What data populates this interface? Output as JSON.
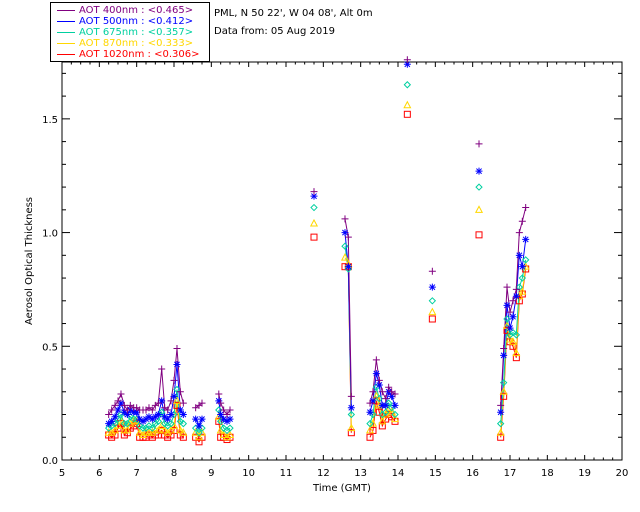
{
  "header": {
    "station": "PML, N 50 22', W 04 08', Alt 0m",
    "date": "Data from: 05 Aug 2019"
  },
  "legend": [
    {
      "label": "AOT  400nm : <0.465>",
      "color": "#800080"
    },
    {
      "label": "AOT  500nm : <0.412>",
      "color": "#0000ff"
    },
    {
      "label": "AOT  675nm : <0.357>",
      "color": "#00d0a0"
    },
    {
      "label": "AOT  870nm : <0.333>",
      "color": "#ffd700"
    },
    {
      "label": "AOT 1020nm : <0.306>",
      "color": "#ff0000"
    }
  ],
  "chart_data": {
    "type": "line",
    "xlabel": "Time (GMT)",
    "ylabel": "Aerosol Optical Thickness",
    "xlim": [
      5,
      20
    ],
    "ylim": [
      0,
      1.75
    ],
    "xticks": [
      "5",
      "6",
      "7",
      "8",
      "9",
      "10",
      "11",
      "12",
      "13",
      "14",
      "15",
      "16",
      "17",
      "18",
      "19",
      "20"
    ],
    "yticks": [
      "0.0",
      "0.5",
      "1.0",
      "1.5"
    ],
    "segments": [
      {
        "x": [
          6.25,
          6.33,
          6.42,
          6.5,
          6.58,
          6.67,
          6.75,
          6.83,
          6.92,
          7.0,
          7.08,
          7.17,
          7.25,
          7.33,
          7.42,
          7.5,
          7.58,
          7.67,
          7.75,
          7.83,
          7.92,
          8.0,
          8.08,
          8.17,
          8.25
        ],
        "series": [
          [
            0.2,
            0.22,
            0.24,
            0.26,
            0.29,
            0.24,
            0.22,
            0.24,
            0.23,
            0.23,
            0.22,
            0.22,
            0.22,
            0.23,
            0.22,
            0.24,
            0.25,
            0.4,
            0.23,
            0.22,
            0.26,
            0.35,
            0.49,
            0.3,
            0.25
          ],
          [
            0.16,
            0.17,
            0.19,
            0.22,
            0.25,
            0.21,
            0.2,
            0.22,
            0.21,
            0.21,
            0.18,
            0.17,
            0.18,
            0.19,
            0.18,
            0.19,
            0.2,
            0.26,
            0.19,
            0.18,
            0.2,
            0.28,
            0.42,
            0.22,
            0.2
          ],
          [
            0.14,
            0.15,
            0.16,
            0.18,
            0.2,
            0.16,
            0.16,
            0.19,
            0.18,
            0.18,
            0.15,
            0.14,
            0.14,
            0.15,
            0.14,
            0.16,
            0.17,
            0.21,
            0.16,
            0.15,
            0.16,
            0.2,
            0.31,
            0.17,
            0.16
          ],
          [
            0.12,
            0.12,
            0.13,
            0.15,
            0.17,
            0.13,
            0.13,
            0.16,
            0.17,
            0.17,
            0.12,
            0.11,
            0.12,
            0.12,
            0.12,
            0.13,
            0.13,
            0.15,
            0.13,
            0.12,
            0.13,
            0.15,
            0.26,
            0.13,
            0.12
          ],
          [
            0.11,
            0.1,
            0.11,
            0.14,
            0.16,
            0.11,
            0.12,
            0.14,
            0.15,
            0.16,
            0.1,
            0.1,
            0.1,
            0.11,
            0.1,
            0.11,
            0.11,
            0.13,
            0.11,
            0.1,
            0.11,
            0.13,
            0.24,
            0.11,
            0.1
          ]
        ]
      },
      {
        "x": [
          8.58,
          8.67,
          8.75
        ],
        "series": [
          [
            0.23,
            0.24,
            0.25
          ],
          [
            0.18,
            0.15,
            0.18
          ],
          [
            0.14,
            0.12,
            0.14
          ],
          [
            0.12,
            0.1,
            0.12
          ],
          [
            0.1,
            0.08,
            0.1
          ]
        ]
      },
      {
        "x": [
          9.2,
          9.25,
          9.33,
          9.42,
          9.5
        ],
        "series": [
          [
            0.29,
            0.25,
            0.22,
            0.2,
            0.22
          ],
          [
            0.26,
            0.2,
            0.18,
            0.17,
            0.18
          ],
          [
            0.22,
            0.17,
            0.14,
            0.13,
            0.14
          ],
          [
            0.19,
            0.13,
            0.11,
            0.1,
            0.11
          ],
          [
            0.17,
            0.1,
            0.1,
            0.09,
            0.1
          ]
        ]
      },
      {
        "x": [
          11.75
        ],
        "series": [
          [
            1.18
          ],
          [
            1.16
          ],
          [
            1.11
          ],
          [
            1.04
          ],
          [
            0.98
          ]
        ]
      },
      {
        "x": [
          12.58,
          12.67,
          12.75
        ],
        "series": [
          [
            1.06,
            0.98,
            0.28
          ],
          [
            1.0,
            0.85,
            0.23
          ],
          [
            0.94,
            0.84,
            0.2
          ],
          [
            0.89,
            0.86,
            0.14
          ],
          [
            0.85,
            0.85,
            0.12
          ]
        ]
      },
      {
        "x": [
          13.25,
          13.33,
          13.42,
          13.5,
          13.58,
          13.67,
          13.75,
          13.83,
          13.92
        ],
        "series": [
          [
            0.25,
            0.3,
            0.44,
            0.35,
            0.3,
            0.27,
            0.32,
            0.3,
            0.29
          ],
          [
            0.21,
            0.26,
            0.38,
            0.33,
            0.24,
            0.24,
            0.3,
            0.28,
            0.24
          ],
          [
            0.16,
            0.2,
            0.32,
            0.27,
            0.2,
            0.21,
            0.25,
            0.23,
            0.2
          ],
          [
            0.13,
            0.16,
            0.28,
            0.24,
            0.17,
            0.2,
            0.22,
            0.21,
            0.18
          ],
          [
            0.1,
            0.13,
            0.26,
            0.21,
            0.15,
            0.18,
            0.2,
            0.19,
            0.17
          ]
        ]
      },
      {
        "x": [
          14.25
        ],
        "series": [
          [
            1.76
          ],
          [
            1.74
          ],
          [
            1.65
          ],
          [
            1.56
          ],
          [
            1.52
          ]
        ]
      },
      {
        "x": [
          14.92
        ],
        "series": [
          [
            0.83
          ],
          [
            0.76
          ],
          [
            0.7
          ],
          [
            0.65
          ],
          [
            0.62
          ]
        ]
      },
      {
        "x": [
          16.17
        ],
        "series": [
          [
            1.39
          ],
          [
            1.27
          ],
          [
            1.2
          ],
          [
            1.1
          ],
          [
            0.99
          ]
        ]
      },
      {
        "x": [
          16.75,
          16.83,
          16.92,
          17.0,
          17.08,
          17.17,
          17.25,
          17.33,
          17.42
        ],
        "series": [
          [
            0.24,
            0.49,
            0.76,
            0.65,
            0.7,
            0.75,
            1.0,
            1.05,
            1.11
          ],
          [
            0.21,
            0.46,
            0.68,
            0.58,
            0.63,
            0.72,
            0.9,
            0.85,
            0.97
          ],
          [
            0.16,
            0.34,
            0.62,
            0.55,
            0.56,
            0.55,
            0.76,
            0.8,
            0.88
          ],
          [
            0.12,
            0.3,
            0.59,
            0.53,
            0.52,
            0.47,
            0.72,
            0.74,
            0.85
          ],
          [
            0.1,
            0.28,
            0.57,
            0.52,
            0.5,
            0.45,
            0.7,
            0.73,
            0.84
          ]
        ]
      }
    ]
  }
}
